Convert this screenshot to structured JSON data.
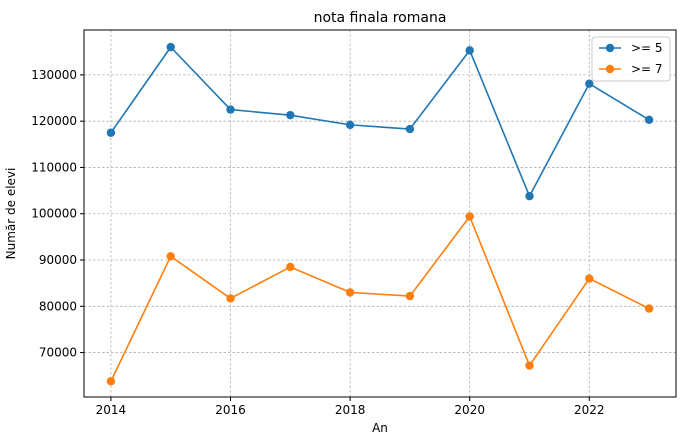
{
  "chart_data": {
    "type": "line",
    "title": "nota finala romana",
    "xlabel": "An",
    "ylabel": "Număr de elevi",
    "x": [
      2014,
      2015,
      2016,
      2017,
      2018,
      2019,
      2020,
      2021,
      2022,
      2023
    ],
    "xlim": [
      2013.55,
      2023.45
    ],
    "ylim": [
      60400,
      139700
    ],
    "xticks": [
      2014,
      2016,
      2018,
      2020,
      2022
    ],
    "yticks": [
      70000,
      80000,
      90000,
      100000,
      110000,
      120000,
      130000
    ],
    "grid": true,
    "legend_position": "top-right",
    "series": [
      {
        "name": ">= 5",
        "color": "#1f77b4",
        "values": [
          117500,
          136000,
          122500,
          121300,
          119200,
          118300,
          135300,
          103800,
          128100,
          120300
        ]
      },
      {
        "name": ">= 7",
        "color": "#ff7f0e",
        "values": [
          63800,
          90800,
          81700,
          88500,
          83000,
          82200,
          99400,
          67200,
          86000,
          79500
        ]
      }
    ]
  }
}
